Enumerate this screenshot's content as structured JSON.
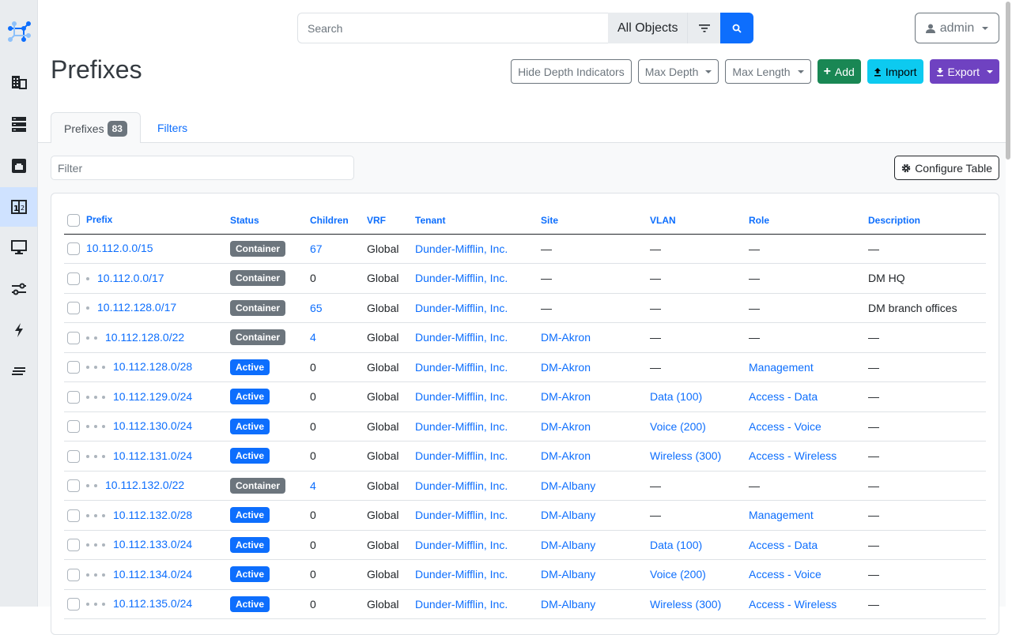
{
  "sidebar": {
    "logo": "netbox-logo",
    "items": [
      {
        "icon": "organization-icon"
      },
      {
        "icon": "devices-icon"
      },
      {
        "icon": "connections-icon"
      },
      {
        "icon": "ipam-icon",
        "active": true
      },
      {
        "icon": "virtualization-icon"
      },
      {
        "icon": "circuits-icon"
      },
      {
        "icon": "power-icon"
      },
      {
        "icon": "other-icon"
      }
    ]
  },
  "search": {
    "placeholder": "Search",
    "scope": "All Objects"
  },
  "user": {
    "label": "admin"
  },
  "page": {
    "title": "Prefixes"
  },
  "actions": {
    "hide_depth": "Hide Depth Indicators",
    "max_depth": "Max Depth",
    "max_length": "Max Length",
    "add": "Add",
    "import": "Import",
    "export": "Export"
  },
  "tabs": {
    "prefixes": "Prefixes",
    "count": "83",
    "filters": "Filters"
  },
  "filter": {
    "placeholder": "Filter"
  },
  "configure": "Configure Table",
  "colors": {
    "container": "#6c757d",
    "active": "#0d6efd",
    "primary": "#0d6efd"
  },
  "table": {
    "columns": [
      "Prefix",
      "Status",
      "Children",
      "VRF",
      "Tenant",
      "Site",
      "VLAN",
      "Role",
      "Description"
    ],
    "rows": [
      {
        "depth": 0,
        "prefix": "10.112.0.0/15",
        "status": "Container",
        "children": "67",
        "vrf": "Global",
        "tenant": "Dunder-Mifflin, Inc.",
        "site": "—",
        "vlan": "—",
        "role": "—",
        "description": "—"
      },
      {
        "depth": 1,
        "prefix": "10.112.0.0/17",
        "status": "Container",
        "children": "0",
        "vrf": "Global",
        "tenant": "Dunder-Mifflin, Inc.",
        "site": "—",
        "vlan": "—",
        "role": "—",
        "description": "DM HQ"
      },
      {
        "depth": 1,
        "prefix": "10.112.128.0/17",
        "status": "Container",
        "children": "65",
        "vrf": "Global",
        "tenant": "Dunder-Mifflin, Inc.",
        "site": "—",
        "vlan": "—",
        "role": "—",
        "description": "DM branch offices"
      },
      {
        "depth": 2,
        "prefix": "10.112.128.0/22",
        "status": "Container",
        "children": "4",
        "vrf": "Global",
        "tenant": "Dunder-Mifflin, Inc.",
        "site": "DM-Akron",
        "vlan": "—",
        "role": "—",
        "description": "—"
      },
      {
        "depth": 3,
        "prefix": "10.112.128.0/28",
        "status": "Active",
        "children": "0",
        "vrf": "Global",
        "tenant": "Dunder-Mifflin, Inc.",
        "site": "DM-Akron",
        "vlan": "—",
        "role": "Management",
        "description": "—"
      },
      {
        "depth": 3,
        "prefix": "10.112.129.0/24",
        "status": "Active",
        "children": "0",
        "vrf": "Global",
        "tenant": "Dunder-Mifflin, Inc.",
        "site": "DM-Akron",
        "vlan": "Data (100)",
        "role": "Access - Data",
        "description": "—"
      },
      {
        "depth": 3,
        "prefix": "10.112.130.0/24",
        "status": "Active",
        "children": "0",
        "vrf": "Global",
        "tenant": "Dunder-Mifflin, Inc.",
        "site": "DM-Akron",
        "vlan": "Voice (200)",
        "role": "Access - Voice",
        "description": "—"
      },
      {
        "depth": 3,
        "prefix": "10.112.131.0/24",
        "status": "Active",
        "children": "0",
        "vrf": "Global",
        "tenant": "Dunder-Mifflin, Inc.",
        "site": "DM-Akron",
        "vlan": "Wireless (300)",
        "role": "Access - Wireless",
        "description": "—"
      },
      {
        "depth": 2,
        "prefix": "10.112.132.0/22",
        "status": "Container",
        "children": "4",
        "vrf": "Global",
        "tenant": "Dunder-Mifflin, Inc.",
        "site": "DM-Albany",
        "vlan": "—",
        "role": "—",
        "description": "—"
      },
      {
        "depth": 3,
        "prefix": "10.112.132.0/28",
        "status": "Active",
        "children": "0",
        "vrf": "Global",
        "tenant": "Dunder-Mifflin, Inc.",
        "site": "DM-Albany",
        "vlan": "—",
        "role": "Management",
        "description": "—"
      },
      {
        "depth": 3,
        "prefix": "10.112.133.0/24",
        "status": "Active",
        "children": "0",
        "vrf": "Global",
        "tenant": "Dunder-Mifflin, Inc.",
        "site": "DM-Albany",
        "vlan": "Data (100)",
        "role": "Access - Data",
        "description": "—"
      },
      {
        "depth": 3,
        "prefix": "10.112.134.0/24",
        "status": "Active",
        "children": "0",
        "vrf": "Global",
        "tenant": "Dunder-Mifflin, Inc.",
        "site": "DM-Albany",
        "vlan": "Voice (200)",
        "role": "Access - Voice",
        "description": "—"
      },
      {
        "depth": 3,
        "prefix": "10.112.135.0/24",
        "status": "Active",
        "children": "0",
        "vrf": "Global",
        "tenant": "Dunder-Mifflin, Inc.",
        "site": "DM-Albany",
        "vlan": "Wireless (300)",
        "role": "Access - Wireless",
        "description": "—"
      }
    ]
  }
}
